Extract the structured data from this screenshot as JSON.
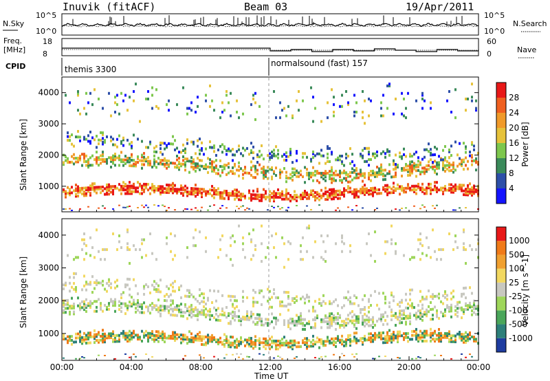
{
  "header": {
    "station": "Inuvik (fitACF)",
    "beam": "Beam 03",
    "date": "19/Apr/2011"
  },
  "panels": {
    "nsky_label": "N.Sky",
    "nsky_ticks": [
      "10^5",
      "10^0"
    ],
    "nsearch_label": "N.Search",
    "nsearch_ticks": [
      "10^5",
      "10^0"
    ],
    "freq_label": "Freq.",
    "freq_unit": "[MHz]",
    "freq_ticks": [
      "18",
      "8"
    ],
    "nave_label": "Nave",
    "nave_ticks": [
      "60",
      "0"
    ],
    "cpid_label": "CPID",
    "cpid_segments": [
      {
        "label": "themis 3300",
        "start_hour": 0
      },
      {
        "label": "normalsound (fast) 157",
        "start_hour": 12
      }
    ]
  },
  "chart_data": [
    {
      "type": "heatmap",
      "title": "",
      "ylabel": "Slant Range [km]",
      "yticks": [
        "1000",
        "2000",
        "3000",
        "4000"
      ],
      "ylim": [
        180,
        4500
      ],
      "colorbar_label": "Power [dB]",
      "colorbar_ticks": [
        "4",
        "8",
        "12",
        "16",
        "20",
        "24",
        "28"
      ],
      "colorbar_colors": [
        "#1414ff",
        "#2d4fa8",
        "#3a8a5a",
        "#7dc74d",
        "#e6c23a",
        "#f09a2a",
        "#f06020",
        "#e81818"
      ],
      "bands": [
        {
          "range_km": 1000,
          "description": "strong echoes",
          "value_db": 28
        },
        {
          "range_km": 1700,
          "description": "moderate echoes",
          "value_db": 20
        }
      ]
    },
    {
      "type": "heatmap",
      "title": "",
      "ylabel": "Slant Range [km]",
      "yticks": [
        "1000",
        "2000",
        "3000",
        "4000"
      ],
      "ylim": [
        180,
        4500
      ],
      "colorbar_label": "Velocity [m s^-1]",
      "colorbar_ticks": [
        "1000",
        "500",
        "100",
        "25",
        "-25",
        "-100",
        "-500",
        "-1000"
      ],
      "colorbar_colors": [
        "#1e3ca0",
        "#2d7f7a",
        "#4aa65a",
        "#9ed65a",
        "#c8c8c0",
        "#f2d860",
        "#f0a030",
        "#f07a18",
        "#e81818"
      ]
    }
  ],
  "xaxis": {
    "label": "Time UT",
    "ticks": [
      "00:00",
      "04:00",
      "08:00",
      "12:00",
      "16:00",
      "20:00",
      "00:00"
    ]
  }
}
